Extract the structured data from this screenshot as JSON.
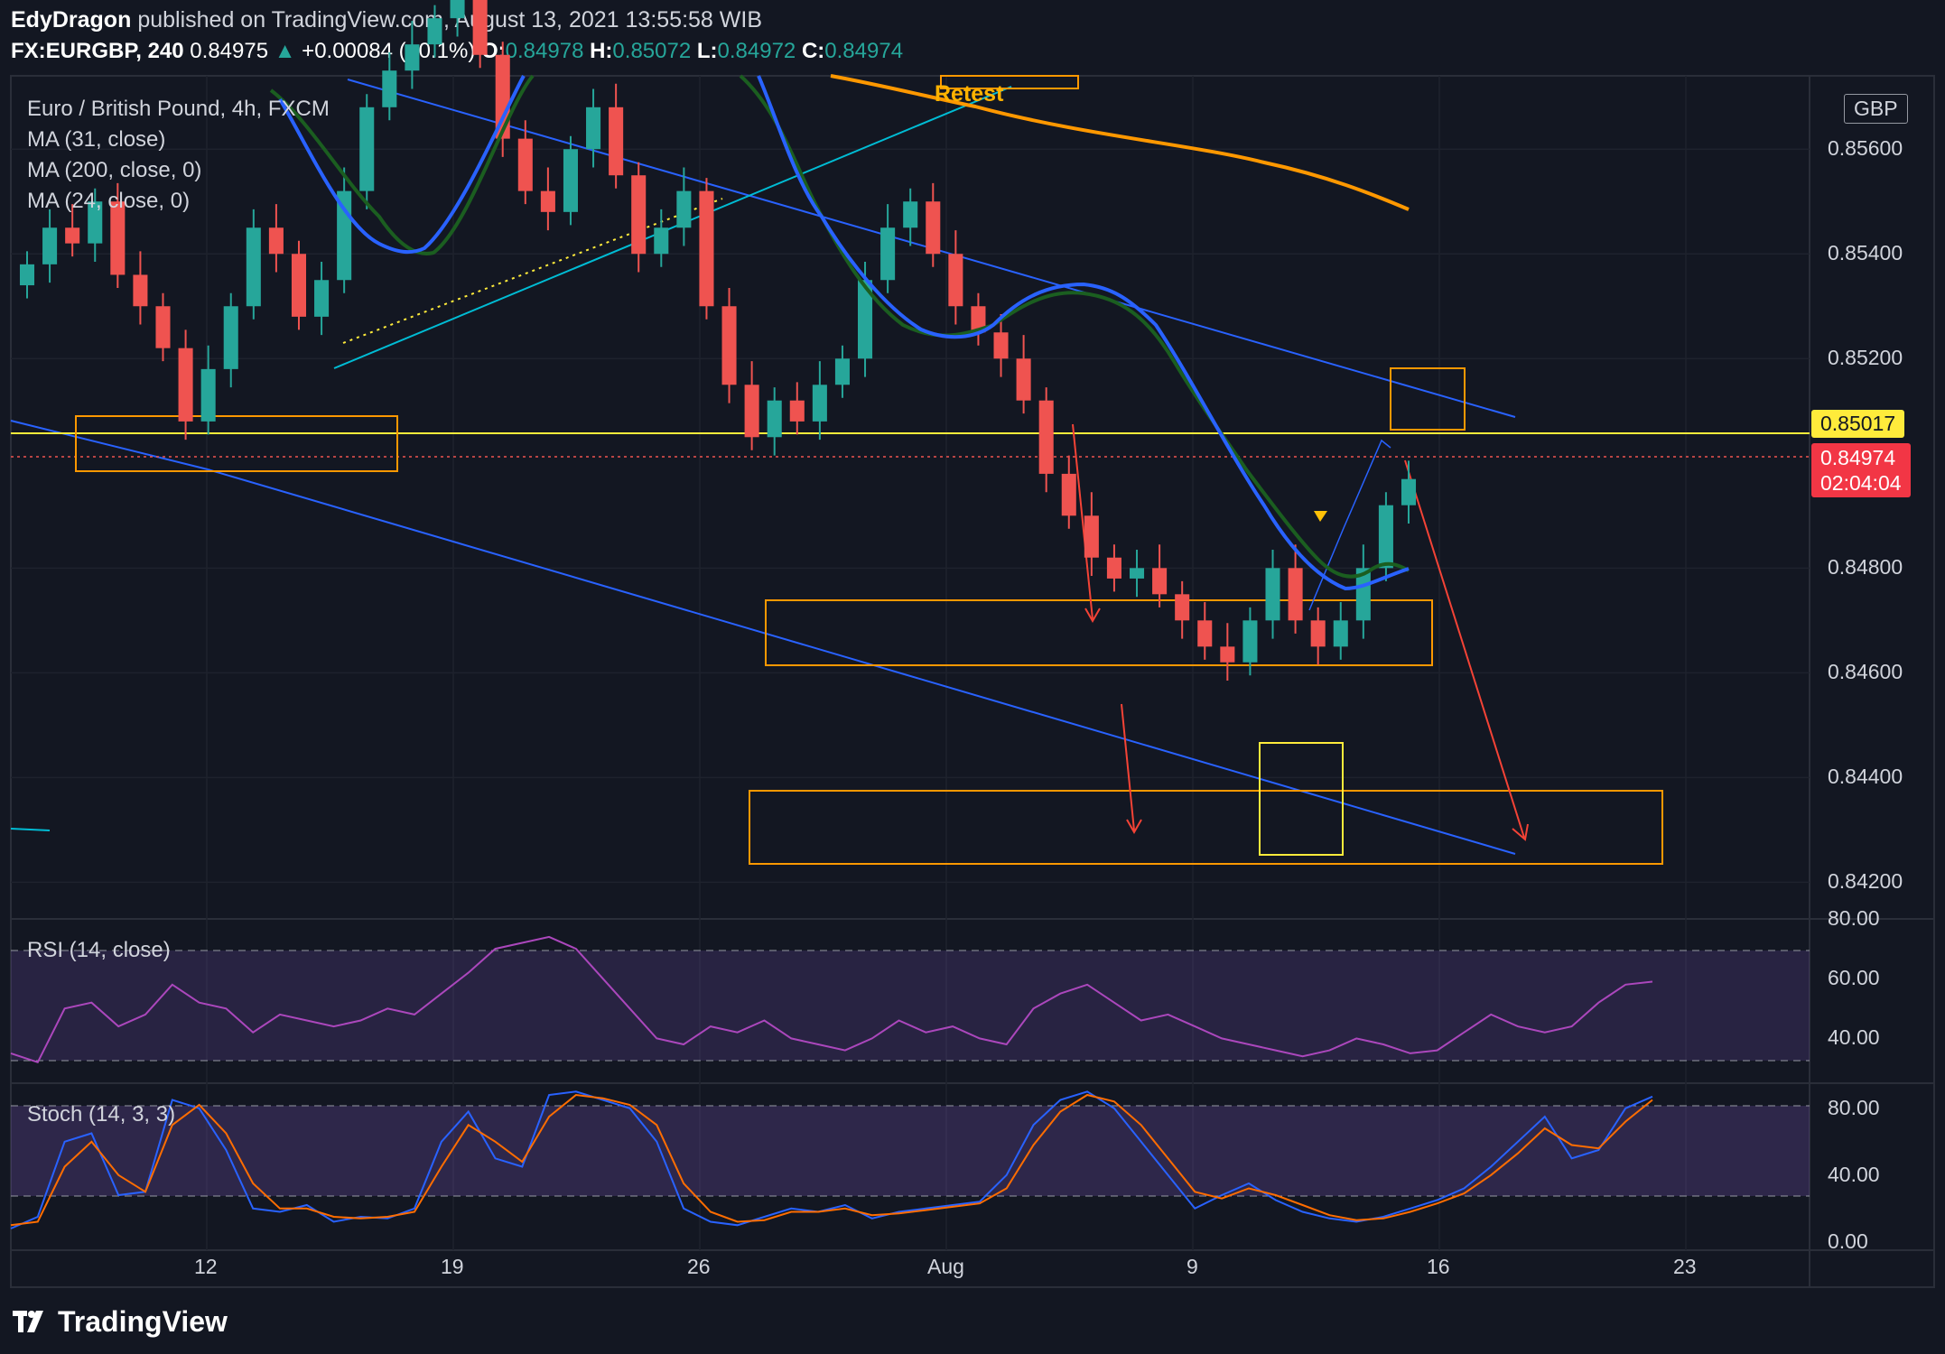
{
  "header": {
    "author": "EdyDragon",
    "published": "published on TradingView.com, August 13, 2021 13:55:58 WIB",
    "symbol": "FX:EURGBP, 240",
    "last": "0.84975",
    "change": "+0.00084 (+0.1%)",
    "o_label": "O:",
    "o": "0.84978",
    "h_label": "H:",
    "h": "0.85072",
    "l_label": "L:",
    "l": "0.84972",
    "c_label": "C:",
    "c": "0.84974"
  },
  "legend": {
    "title": "Euro / British Pound, 4h, FXCM",
    "ma1": "MA (31, close)",
    "ma2": "MA (200, close, 0)",
    "ma3": "MA (24, close, 0)",
    "rsi": "RSI (14, close)",
    "stoch": "Stoch (14, 3, 3)"
  },
  "currency": "GBP",
  "annotation": "Retest",
  "price_tags": {
    "level": "0.85017",
    "current": "0.84974",
    "countdown": "02:04:04"
  },
  "colors": {
    "up": "#26a69a",
    "down": "#ef5350",
    "ma_blue": "#2962ff",
    "ma_green": "#1b5e20",
    "ma_orange": "#ff9800",
    "box": "#ff9800",
    "level": "#ffeb3b",
    "trend": "#2962ff",
    "rsi": "#ab47bc",
    "stoch_k": "#2962ff",
    "stoch_d": "#ff6d00",
    "arrow": "#f44336"
  },
  "branding": "TradingView",
  "chart_data": [
    {
      "type": "candlestick",
      "name": "Euro / British Pound, 4h, FXCM",
      "y_ticks": [
        "0.85600",
        "0.85400",
        "0.85200",
        "0.84800",
        "0.84600",
        "0.84400",
        "0.84200"
      ],
      "ylim": [
        0.8413,
        0.8574
      ],
      "x_ticks": [
        "12",
        "19",
        "26",
        "Aug",
        "9",
        "16",
        "23"
      ],
      "close_series": [
        0.8538,
        0.8545,
        0.8542,
        0.855,
        0.8536,
        0.853,
        0.8522,
        0.8508,
        0.8518,
        0.853,
        0.8545,
        0.854,
        0.8528,
        0.8535,
        0.8552,
        0.8568,
        0.8575,
        0.858,
        0.8585,
        0.859,
        0.8578,
        0.8562,
        0.8552,
        0.8548,
        0.856,
        0.8568,
        0.8555,
        0.854,
        0.8545,
        0.8552,
        0.853,
        0.8515,
        0.8505,
        0.8512,
        0.8508,
        0.8515,
        0.852,
        0.8535,
        0.8545,
        0.855,
        0.854,
        0.853,
        0.8525,
        0.852,
        0.8512,
        0.8498,
        0.849,
        0.8482,
        0.8478,
        0.848,
        0.8475,
        0.847,
        0.8465,
        0.8462,
        0.847,
        0.848,
        0.847,
        0.8465,
        0.847,
        0.848,
        0.8492,
        0.8497
      ]
    },
    {
      "type": "line",
      "name": "RSI (14, close)",
      "y_ticks": [
        "80.00",
        "60.00",
        "40.00"
      ],
      "ylim": [
        25,
        80
      ],
      "bands": [
        30,
        70
      ],
      "values": [
        35,
        32,
        50,
        52,
        44,
        48,
        58,
        52,
        50,
        42,
        48,
        46,
        44,
        46,
        50,
        48,
        55,
        62,
        70,
        72,
        74,
        70,
        60,
        50,
        40,
        38,
        44,
        42,
        46,
        40,
        38,
        36,
        40,
        46,
        42,
        44,
        40,
        38,
        50,
        55,
        58,
        52,
        46,
        48,
        44,
        40,
        38,
        36,
        34,
        36,
        40,
        38,
        35,
        36,
        42,
        48,
        44,
        42,
        44,
        52,
        58,
        59
      ]
    },
    {
      "type": "line",
      "name": "Stoch (14, 3, 3)",
      "y_ticks": [
        "80.00",
        "40.00",
        "0.00"
      ],
      "ylim": [
        -5,
        95
      ],
      "bands": [
        20,
        80
      ],
      "series": [
        {
          "name": "K",
          "values": [
            8,
            15,
            60,
            65,
            28,
            30,
            85,
            80,
            55,
            20,
            18,
            22,
            12,
            15,
            14,
            20,
            60,
            78,
            50,
            45,
            88,
            90,
            85,
            80,
            60,
            20,
            12,
            10,
            15,
            20,
            18,
            22,
            14,
            18,
            20,
            22,
            24,
            40,
            70,
            85,
            90,
            80,
            60,
            40,
            20,
            28,
            35,
            25,
            18,
            14,
            12,
            15,
            20,
            25,
            32,
            45,
            60,
            75,
            50,
            55,
            80,
            87
          ]
        },
        {
          "name": "D",
          "values": [
            10,
            12,
            45,
            60,
            40,
            30,
            70,
            82,
            65,
            35,
            20,
            20,
            15,
            14,
            15,
            18,
            45,
            70,
            60,
            48,
            75,
            88,
            86,
            82,
            70,
            35,
            18,
            12,
            13,
            18,
            18,
            20,
            16,
            17,
            19,
            21,
            23,
            32,
            58,
            78,
            88,
            84,
            70,
            50,
            30,
            26,
            32,
            28,
            22,
            16,
            13,
            14,
            18,
            23,
            29,
            40,
            53,
            68,
            58,
            56,
            72,
            85
          ]
        }
      ]
    }
  ]
}
